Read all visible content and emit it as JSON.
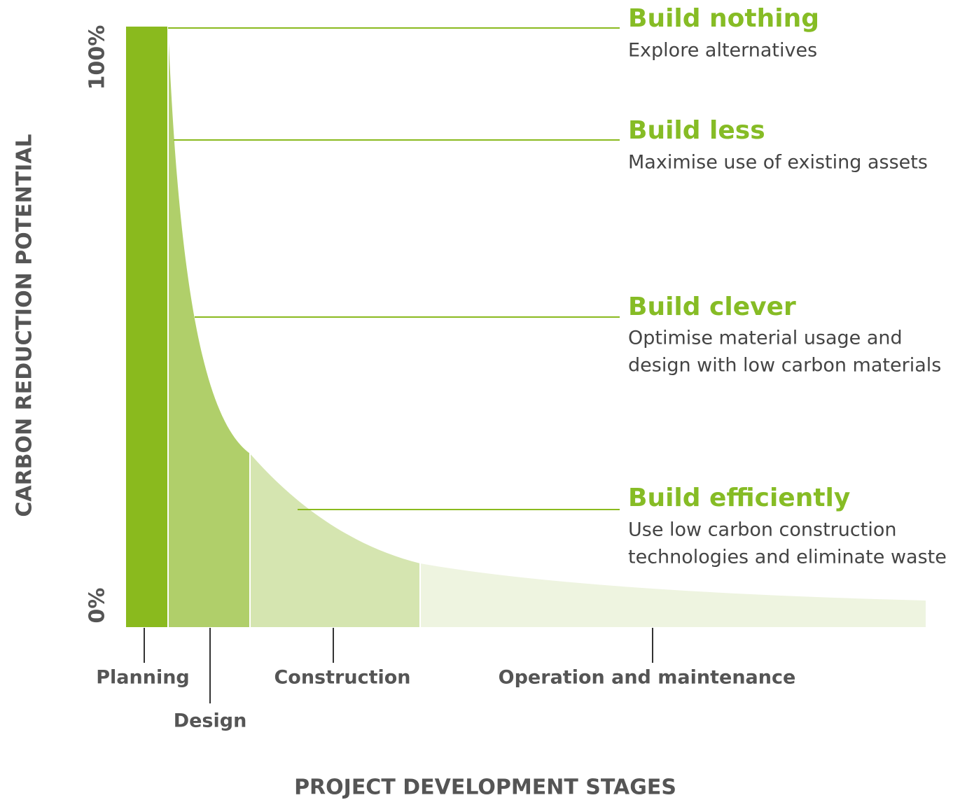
{
  "y_axis_label": "CARBON REDUCTION POTENTIAL",
  "y_ticks": [
    "100%",
    "0%"
  ],
  "x_axis_label": "PROJECT DEVELOPMENT STAGES",
  "stages": [
    "Planning",
    "Design",
    "Construction",
    "Operation and maintenance"
  ],
  "strategies": [
    {
      "title": "Build nothing",
      "description": [
        "Explore alternatives"
      ]
    },
    {
      "title": "Build less",
      "description": [
        "Maximise use of existing assets"
      ]
    },
    {
      "title": "Build clever",
      "description": [
        "Optimise material usage and",
        "design with low carbon materials"
      ]
    },
    {
      "title": "Build efficiently",
      "description": [
        "Use low carbon construction",
        "technologies and eliminate waste"
      ]
    }
  ]
}
